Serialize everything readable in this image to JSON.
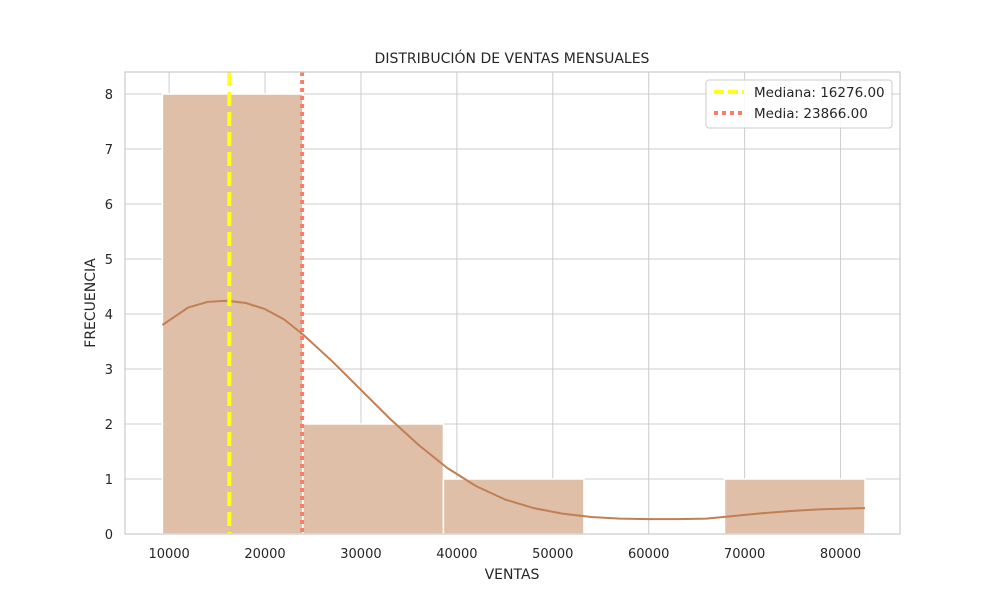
{
  "chart_data": {
    "type": "bar",
    "title": "DISTRIBUCIÓN DE VENTAS MENSUALES",
    "xlabel": "VENTAS",
    "ylabel": "FRECUENCIA",
    "xlim": [
      5400,
      86200
    ],
    "ylim": [
      0,
      8.4
    ],
    "x_ticks": [
      10000,
      20000,
      30000,
      40000,
      50000,
      60000,
      70000,
      80000
    ],
    "y_ticks": [
      0,
      1,
      2,
      3,
      4,
      5,
      6,
      7,
      8
    ],
    "grid": true,
    "legend_position": "top-right",
    "bins": [
      {
        "start": 9300,
        "end": 23950,
        "count": 8
      },
      {
        "start": 23950,
        "end": 38600,
        "count": 2
      },
      {
        "start": 38600,
        "end": 53250,
        "count": 1
      },
      {
        "start": 53250,
        "end": 67900,
        "count": 0
      },
      {
        "start": 67900,
        "end": 82550,
        "count": 1
      }
    ],
    "kde": {
      "x": [
        9300,
        12000,
        14000,
        16000,
        18000,
        20000,
        22000,
        24000,
        27000,
        30000,
        33000,
        36000,
        39000,
        42000,
        45000,
        48000,
        51000,
        54000,
        57000,
        60000,
        63000,
        66000,
        69000,
        72000,
        75000,
        78000,
        80000,
        82550
      ],
      "y": [
        3.8,
        4.12,
        4.22,
        4.24,
        4.2,
        4.09,
        3.9,
        3.62,
        3.14,
        2.62,
        2.1,
        1.62,
        1.2,
        0.87,
        0.63,
        0.47,
        0.37,
        0.31,
        0.28,
        0.27,
        0.27,
        0.28,
        0.33,
        0.38,
        0.42,
        0.45,
        0.46,
        0.47
      ]
    },
    "vlines": [
      {
        "name": "Mediana",
        "value": 16276.0,
        "style": "dashed",
        "color": "#ffff1a"
      },
      {
        "name": "Media",
        "value": 23866.0,
        "style": "dotted",
        "color": "#f4806b"
      }
    ],
    "legend": [
      "Mediana: 16276.00",
      "Media: 23866.00"
    ],
    "colors": {
      "bar_fill": "#dfbfa8",
      "bar_stroke": "#ffffff",
      "kde_line": "#c17f53",
      "grid": "#cccccc",
      "axes_frame": "#cccccc"
    }
  }
}
